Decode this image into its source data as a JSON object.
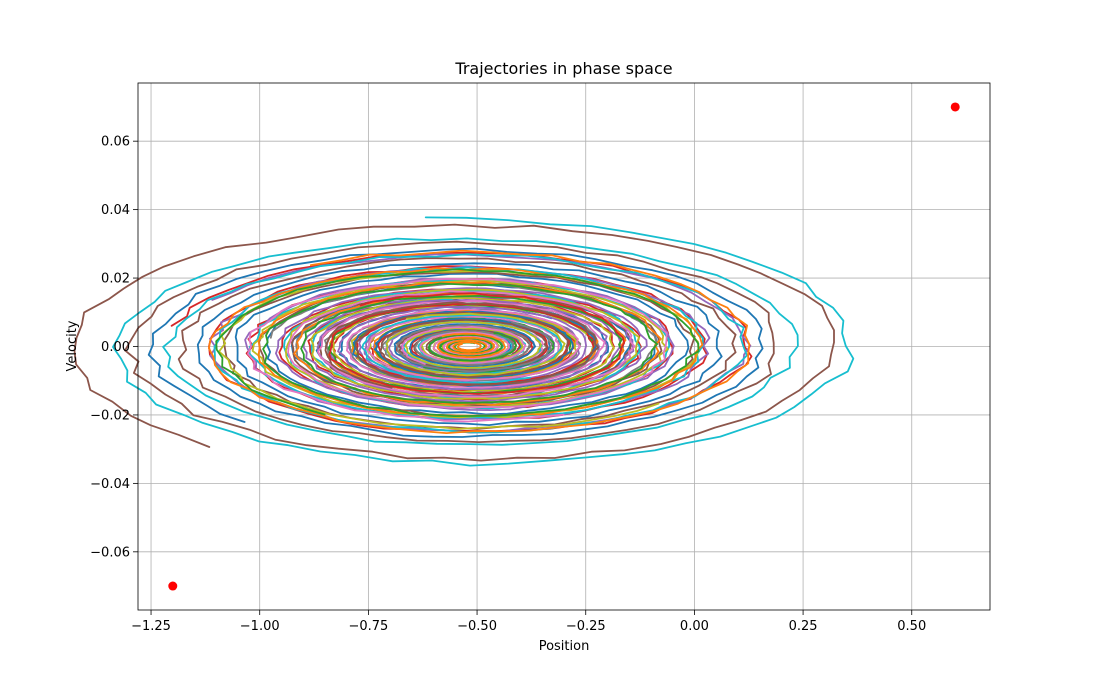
{
  "chart_data": {
    "type": "line",
    "title": "Trajectories in phase space",
    "xlabel": "Position",
    "ylabel": "Velocity",
    "xlim": [
      -1.28,
      0.68
    ],
    "ylim": [
      -0.077,
      0.077
    ],
    "xticks": [
      -1.25,
      -1.0,
      -0.75,
      -0.5,
      -0.25,
      0.0,
      0.25,
      0.5
    ],
    "xtick_labels": [
      "−1.25",
      "−1.00",
      "−0.75",
      "−0.50",
      "−0.25",
      "0.00",
      "0.25",
      "0.50"
    ],
    "yticks": [
      -0.06,
      -0.04,
      -0.02,
      0.0,
      0.02,
      0.04,
      0.06
    ],
    "ytick_labels": [
      "−0.06",
      "−0.04",
      "−0.02",
      "0.00",
      "0.02",
      "0.04",
      "0.06"
    ],
    "grid": true,
    "bounds_points": [
      {
        "x": -1.2,
        "y": -0.07,
        "color": "#ff0000"
      },
      {
        "x": 0.6,
        "y": 0.07,
        "color": "#ff0000"
      }
    ],
    "palette": [
      "#1f77b4",
      "#ff7f0e",
      "#2ca02c",
      "#d62728",
      "#9467bd",
      "#8c564b",
      "#e377c2",
      "#7f7f7f",
      "#bcbd22",
      "#17becf"
    ],
    "trajectories": [
      {
        "x0": -1.03,
        "v0": -0.022,
        "decay": 0.86,
        "loops": 6.5,
        "color": "#1f77b4"
      },
      {
        "x0": -1.2,
        "v0": 0.006,
        "decay": 0.85,
        "loops": 7.0,
        "color": "#d62728"
      },
      {
        "x0": -1.11,
        "v0": 0.0135,
        "decay": 0.86,
        "loops": 7.0,
        "color": "#9467bd"
      },
      {
        "x0": -1.12,
        "v0": -0.029,
        "decay": 0.85,
        "loops": 6.5,
        "color": "#8c564b"
      },
      {
        "x0": -0.98,
        "v0": 0.0025,
        "decay": 0.84,
        "loops": 6.5,
        "color": "#7f7f7f"
      },
      {
        "x0": -0.62,
        "v0": 0.037,
        "decay": 0.85,
        "loops": 6.0,
        "color": "#17becf"
      },
      {
        "x0": -0.09,
        "v0": -0.017,
        "decay": 0.86,
        "loops": 6.5,
        "color": "#bcbd22"
      },
      {
        "x0": -0.16,
        "v0": 0.005,
        "decay": 0.85,
        "loops": 6.0,
        "color": "#9467bd"
      },
      {
        "x0": -0.88,
        "v0": 0.024,
        "decay": 0.82,
        "loops": 6.0,
        "color": "#ff7f0e"
      },
      {
        "x0": -0.85,
        "v0": -0.02,
        "decay": 0.82,
        "loops": 6.0,
        "color": "#2ca02c"
      },
      {
        "x0": -0.3,
        "v0": -0.02,
        "decay": 0.82,
        "loops": 6.0,
        "color": "#e377c2"
      },
      {
        "x0": -0.77,
        "v0": 0.012,
        "decay": 0.8,
        "loops": 5.5,
        "color": "#d62728"
      },
      {
        "x0": -0.34,
        "v0": 0.01,
        "decay": 0.8,
        "loops": 5.5,
        "color": "#1f77b4"
      },
      {
        "x0": -0.7,
        "v0": -0.012,
        "decay": 0.78,
        "loops": 5.5,
        "color": "#8c564b"
      },
      {
        "x0": -0.38,
        "v0": -0.009,
        "decay": 0.78,
        "loops": 5.0,
        "color": "#17becf"
      },
      {
        "x0": -0.66,
        "v0": 0.008,
        "decay": 0.75,
        "loops": 5.0,
        "color": "#bcbd22"
      },
      {
        "x0": -0.42,
        "v0": 0.007,
        "decay": 0.74,
        "loops": 5.0,
        "color": "#7f7f7f"
      },
      {
        "x0": -0.62,
        "v0": -0.005,
        "decay": 0.72,
        "loops": 4.5,
        "color": "#e377c2"
      },
      {
        "x0": -0.46,
        "v0": 0.004,
        "decay": 0.7,
        "loops": 4.0,
        "color": "#2ca02c"
      },
      {
        "x0": -0.58,
        "v0": 0.003,
        "decay": 0.7,
        "loops": 4.0,
        "color": "#ff7f0e"
      }
    ]
  }
}
